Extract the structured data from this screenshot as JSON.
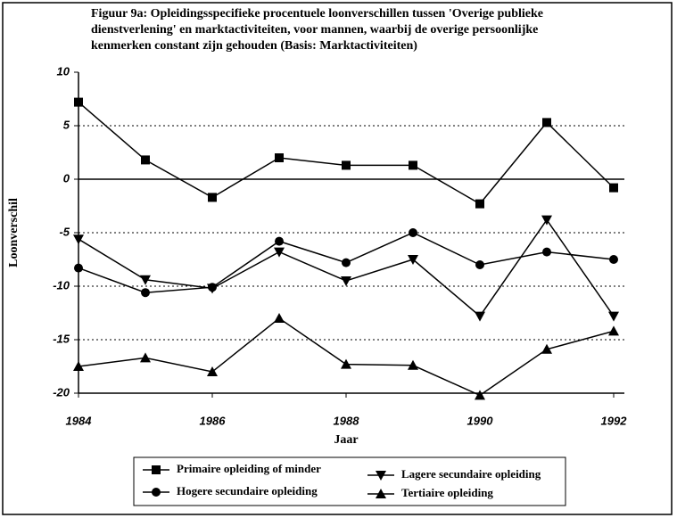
{
  "chart_data": {
    "type": "line",
    "title": [
      "Figuur 9a: Opleidingsspecifieke procentuele loonverschillen tussen 'Overige publieke",
      "dienstverlening' en marktactiviteiten, voor mannen, waarbij de overige persoonlijke",
      "kenmerken constant zijn gehouden (Basis: Marktactiviteiten)"
    ],
    "x_label": "Jaar",
    "y_label": "Loonverschil",
    "x": [
      1984,
      1985,
      1986,
      1987,
      1988,
      1989,
      1990,
      1991,
      1992
    ],
    "xlim": [
      1984,
      1992
    ],
    "xticks": [
      1984,
      1986,
      1988,
      1990,
      1992
    ],
    "ylim": [
      -20,
      10
    ],
    "yticks": [
      10,
      5,
      0,
      -5,
      -10,
      -15,
      -20
    ],
    "grid": true,
    "zero_line": true,
    "legend": "bottom",
    "series": [
      {
        "name": "Primaire opleiding of minder",
        "color": "#000000",
        "marker": "square",
        "values": [
          7.2,
          1.8,
          -1.7,
          2.0,
          1.3,
          1.3,
          -2.3,
          5.3,
          -0.8
        ]
      },
      {
        "name": "Lagere secundaire opleiding",
        "color": "#000000",
        "marker": "triangle-down",
        "values": [
          -5.6,
          -9.4,
          -10.2,
          -6.8,
          -9.5,
          -7.5,
          -12.8,
          -3.8,
          -12.8
        ]
      },
      {
        "name": "Hogere secundaire opleiding",
        "color": "#000000",
        "marker": "circle",
        "values": [
          -8.3,
          -10.6,
          -10.1,
          -5.8,
          -7.8,
          -5.0,
          -8.0,
          -6.8,
          -7.5
        ]
      },
      {
        "name": "Tertiaire opleiding",
        "color": "#000000",
        "marker": "triangle-up",
        "values": [
          -17.5,
          -16.7,
          -18.0,
          -13.0,
          -17.3,
          -17.4,
          -20.2,
          -15.9,
          -14.2
        ]
      }
    ]
  }
}
